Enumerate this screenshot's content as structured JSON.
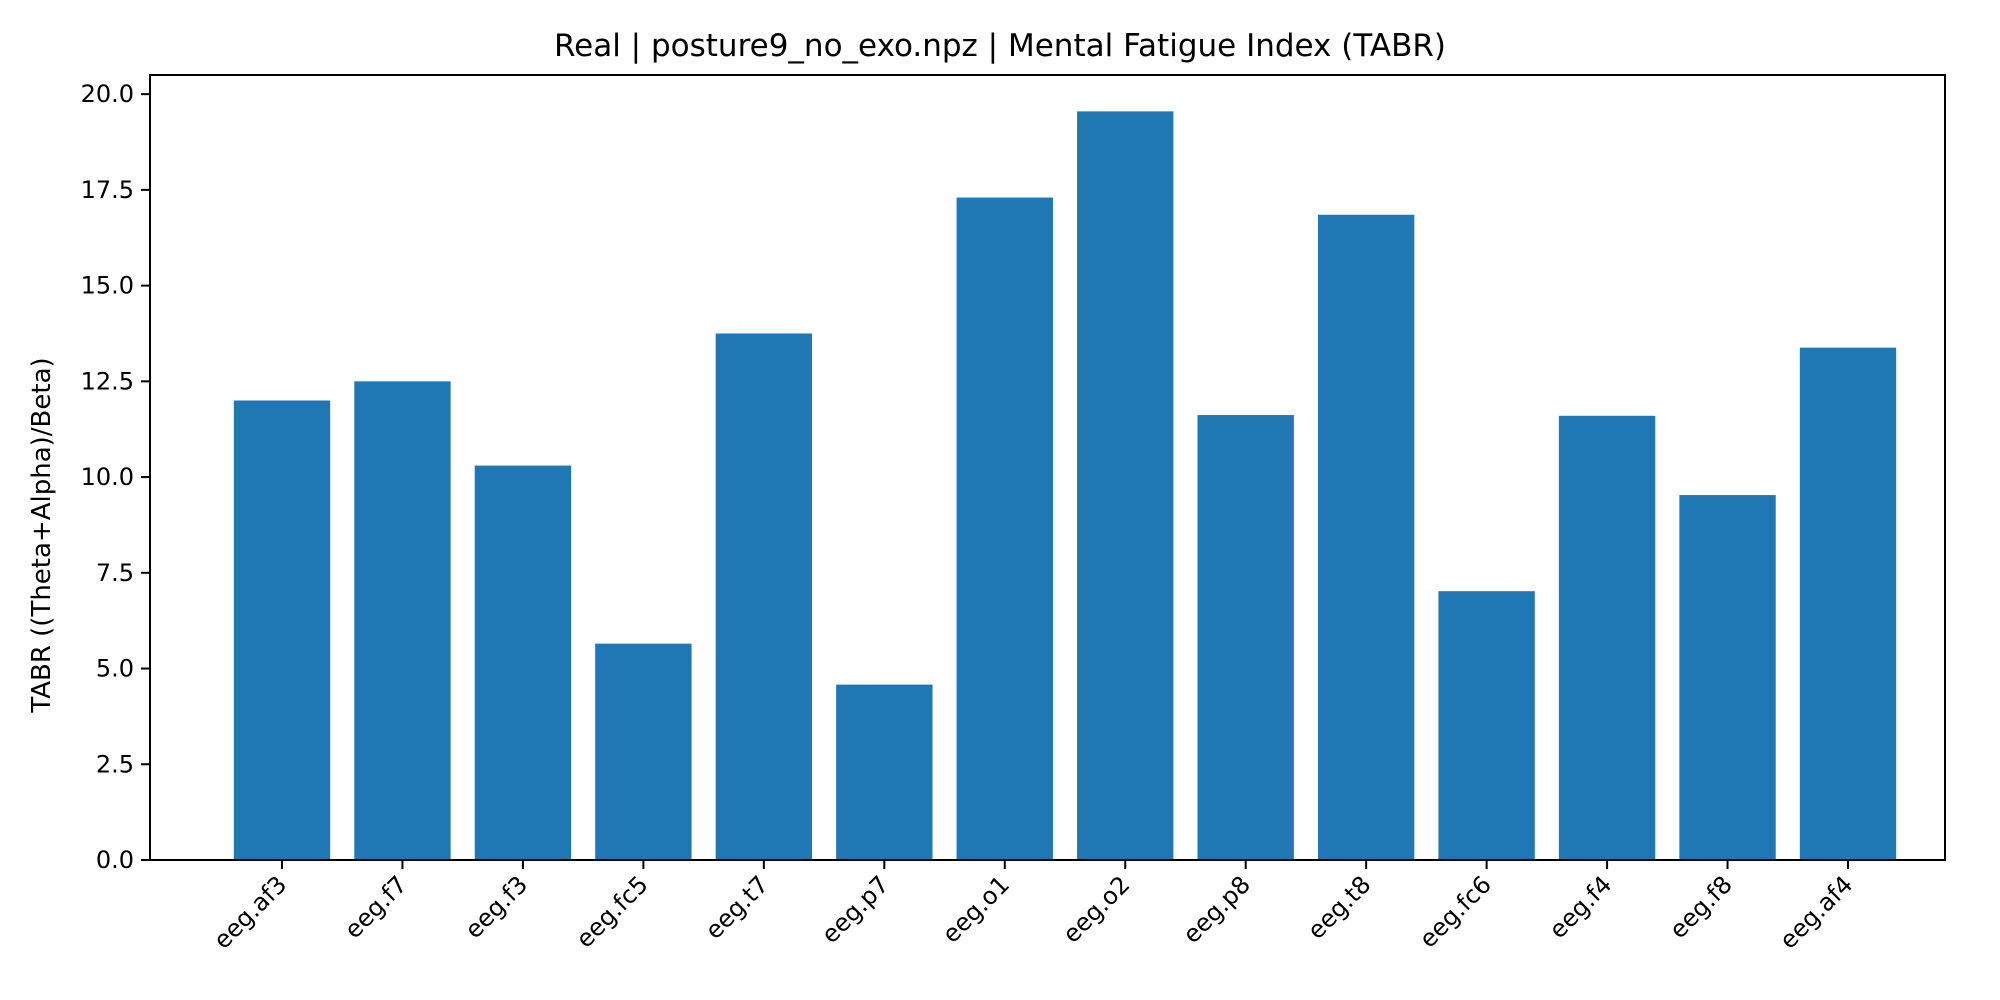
{
  "chart_data": {
    "type": "bar",
    "title": "Real | posture9_no_exo.npz | Mental Fatigue Index (TABR)",
    "xlabel": "",
    "ylabel": "TABR ((Theta+Alpha)/Beta)",
    "categories": [
      "eeg.af3",
      "eeg.f7",
      "eeg.f3",
      "eeg.fc5",
      "eeg.t7",
      "eeg.p7",
      "eeg.o1",
      "eeg.o2",
      "eeg.p8",
      "eeg.t8",
      "eeg.fc6",
      "eeg.f4",
      "eeg.f8",
      "eeg.af4"
    ],
    "values": [
      12.0,
      12.5,
      10.3,
      5.65,
      13.75,
      4.58,
      17.3,
      19.55,
      11.62,
      16.85,
      7.02,
      11.6,
      9.53,
      13.38
    ],
    "ylim": [
      0,
      20.5
    ],
    "yticks": [
      "0.0",
      "2.5",
      "5.0",
      "7.5",
      "10.0",
      "12.5",
      "15.0",
      "17.5",
      "20.0"
    ],
    "grid": false,
    "bar_color": "#1f77b4"
  }
}
